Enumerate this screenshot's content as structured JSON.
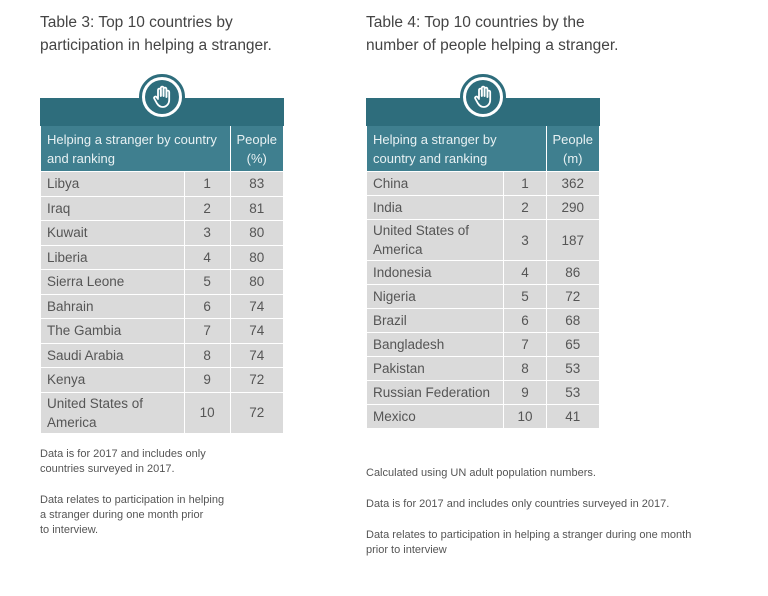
{
  "left": {
    "title": "Table 3: Top 10 countries by\nparticipation in helping a stranger.",
    "header_label": "Helping a stranger by country and ranking",
    "header_value": "People (%)",
    "rows": [
      {
        "country": "Libya",
        "rank": "1",
        "value": "83"
      },
      {
        "country": "Iraq",
        "rank": "2",
        "value": "81"
      },
      {
        "country": "Kuwait",
        "rank": "3",
        "value": "80"
      },
      {
        "country": "Liberia",
        "rank": "4",
        "value": "80"
      },
      {
        "country": "Sierra Leone",
        "rank": "5",
        "value": "80"
      },
      {
        "country": "Bahrain",
        "rank": "6",
        "value": "74"
      },
      {
        "country": "The Gambia",
        "rank": "7",
        "value": "74"
      },
      {
        "country": "Saudi Arabia",
        "rank": "8",
        "value": "74"
      },
      {
        "country": "Kenya",
        "rank": "9",
        "value": "72"
      },
      {
        "country": "United States of America",
        "rank": "10",
        "value": "72"
      }
    ],
    "notes": [
      "Data is for 2017 and includes only\ncountries surveyed in 2017.",
      "Data relates to participation in helping\na stranger during one month prior\nto interview."
    ]
  },
  "right": {
    "title": "Table 4: Top 10 countries by the\nnumber of people helping a stranger.",
    "header_label": "Helping a stranger by country and ranking",
    "header_value": "People (m)",
    "rows": [
      {
        "country": "China",
        "rank": "1",
        "value": "362"
      },
      {
        "country": "India",
        "rank": "2",
        "value": "290"
      },
      {
        "country": "United States of America",
        "rank": "3",
        "value": "187"
      },
      {
        "country": "Indonesia",
        "rank": "4",
        "value": "86"
      },
      {
        "country": "Nigeria",
        "rank": "5",
        "value": "72"
      },
      {
        "country": "Brazil",
        "rank": "6",
        "value": "68"
      },
      {
        "country": "Bangladesh",
        "rank": "7",
        "value": "65"
      },
      {
        "country": "Pakistan",
        "rank": "8",
        "value": "53"
      },
      {
        "country": "Russian Federation",
        "rank": "9",
        "value": "53"
      },
      {
        "country": "Mexico",
        "rank": "10",
        "value": "41"
      }
    ],
    "notes": [
      "Calculated using UN adult population numbers.",
      "Data is for 2017 and includes only countries surveyed in 2017.",
      "Data relates to participation in helping a stranger during one month\nprior to interview"
    ]
  },
  "icon": "raised-hand-icon",
  "colors": {
    "header_dark": "#2e6d7c",
    "header": "#3f7f8f",
    "row": "#dadada"
  }
}
